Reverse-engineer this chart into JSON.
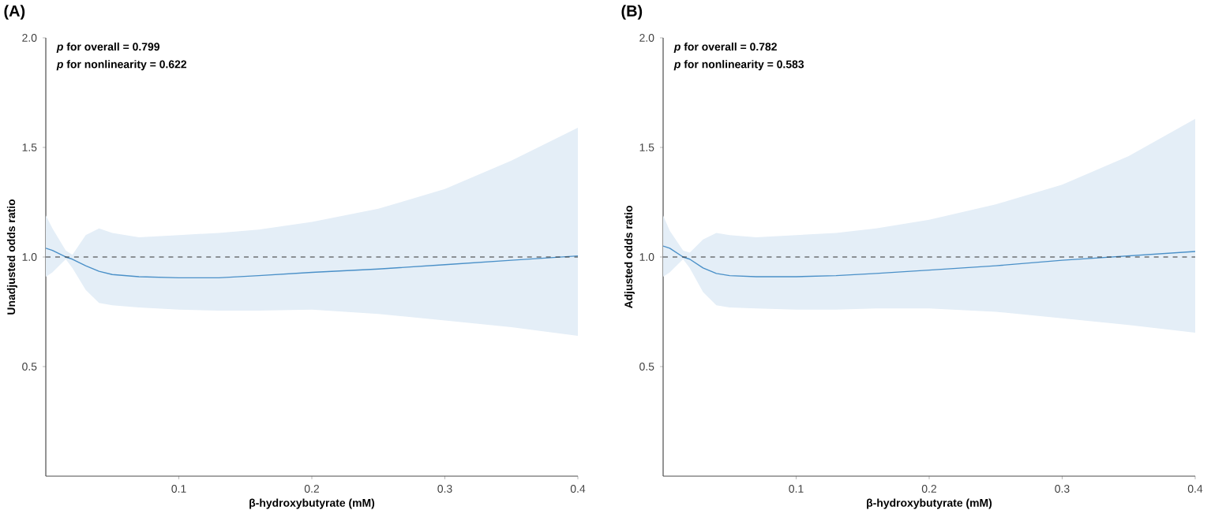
{
  "chart_data": [
    {
      "type": "line",
      "title": "(A)",
      "xlabel": "β-hydroxybutyrate (mM)",
      "ylabel": "Unadjusted odds ratio",
      "annotations": [
        "*p* for overall = 0.799",
        "*p* for nonlinearity = 0.622"
      ],
      "x": [
        0,
        0.005,
        0.015,
        0.02,
        0.03,
        0.04,
        0.05,
        0.07,
        0.1,
        0.13,
        0.16,
        0.2,
        0.25,
        0.3,
        0.35,
        0.4
      ],
      "series": [
        {
          "color": "#4a90c8",
          "values": [
            1.04,
            1.03,
            1.0,
            0.99,
            0.96,
            0.935,
            0.92,
            0.91,
            0.905,
            0.905,
            0.915,
            0.93,
            0.945,
            0.965,
            0.985,
            1.005
          ],
          "lower": [
            0.91,
            0.93,
            0.99,
            0.95,
            0.85,
            0.79,
            0.78,
            0.77,
            0.76,
            0.755,
            0.755,
            0.76,
            0.74,
            0.71,
            0.68,
            0.64
          ],
          "upper": [
            1.19,
            1.13,
            1.03,
            1.01,
            1.1,
            1.13,
            1.11,
            1.09,
            1.1,
            1.11,
            1.125,
            1.16,
            1.22,
            1.31,
            1.44,
            1.59
          ]
        }
      ],
      "xlim": [
        0,
        0.4
      ],
      "xticks": [
        0.1,
        0.2,
        0.3,
        0.4
      ],
      "ylim": [
        0,
        2
      ],
      "yticks": [
        {
          "value": 0.5,
          "label": "0.5"
        },
        {
          "value": 1,
          "label": "1.0"
        },
        {
          "value": 1.5,
          "label": "1.5"
        },
        {
          "value": 2,
          "label": "2.0"
        }
      ],
      "ref_lines": [
        {
          "axis": "y",
          "value": 1,
          "color": "#333333",
          "line_style": "dashed"
        }
      ],
      "grid": false,
      "legend": false
    },
    {
      "type": "line",
      "title": "(B)",
      "xlabel": "β-hydroxybutyrate (mM)",
      "ylabel": "Adjusted odds ratio",
      "annotations": [
        "*p* for overall = 0.782",
        "*p* for nonlinearity = 0.583"
      ],
      "x": [
        0,
        0.005,
        0.015,
        0.02,
        0.03,
        0.04,
        0.05,
        0.07,
        0.1,
        0.13,
        0.16,
        0.2,
        0.25,
        0.3,
        0.35,
        0.4
      ],
      "series": [
        {
          "color": "#4a90c8",
          "values": [
            1.05,
            1.04,
            1.0,
            0.99,
            0.95,
            0.925,
            0.915,
            0.91,
            0.91,
            0.915,
            0.925,
            0.94,
            0.96,
            0.985,
            1.005,
            1.025
          ],
          "lower": [
            0.91,
            0.93,
            0.99,
            0.95,
            0.84,
            0.78,
            0.77,
            0.765,
            0.76,
            0.76,
            0.765,
            0.765,
            0.75,
            0.72,
            0.69,
            0.655
          ],
          "upper": [
            1.19,
            1.12,
            1.03,
            1.02,
            1.08,
            1.11,
            1.1,
            1.09,
            1.1,
            1.11,
            1.13,
            1.17,
            1.24,
            1.33,
            1.46,
            1.63
          ]
        }
      ],
      "xlim": [
        0,
        0.4
      ],
      "xticks": [
        0.1,
        0.2,
        0.3,
        0.4
      ],
      "ylim": [
        0,
        2
      ],
      "yticks": [
        {
          "value": 0.5,
          "label": "0.5"
        },
        {
          "value": 1,
          "label": "1.0"
        },
        {
          "value": 1.5,
          "label": "1.5"
        },
        {
          "value": 2,
          "label": "2.0"
        }
      ],
      "ref_lines": [
        {
          "axis": "y",
          "value": 1,
          "color": "#333333",
          "line_style": "dashed"
        }
      ],
      "grid": false,
      "legend": false
    }
  ]
}
